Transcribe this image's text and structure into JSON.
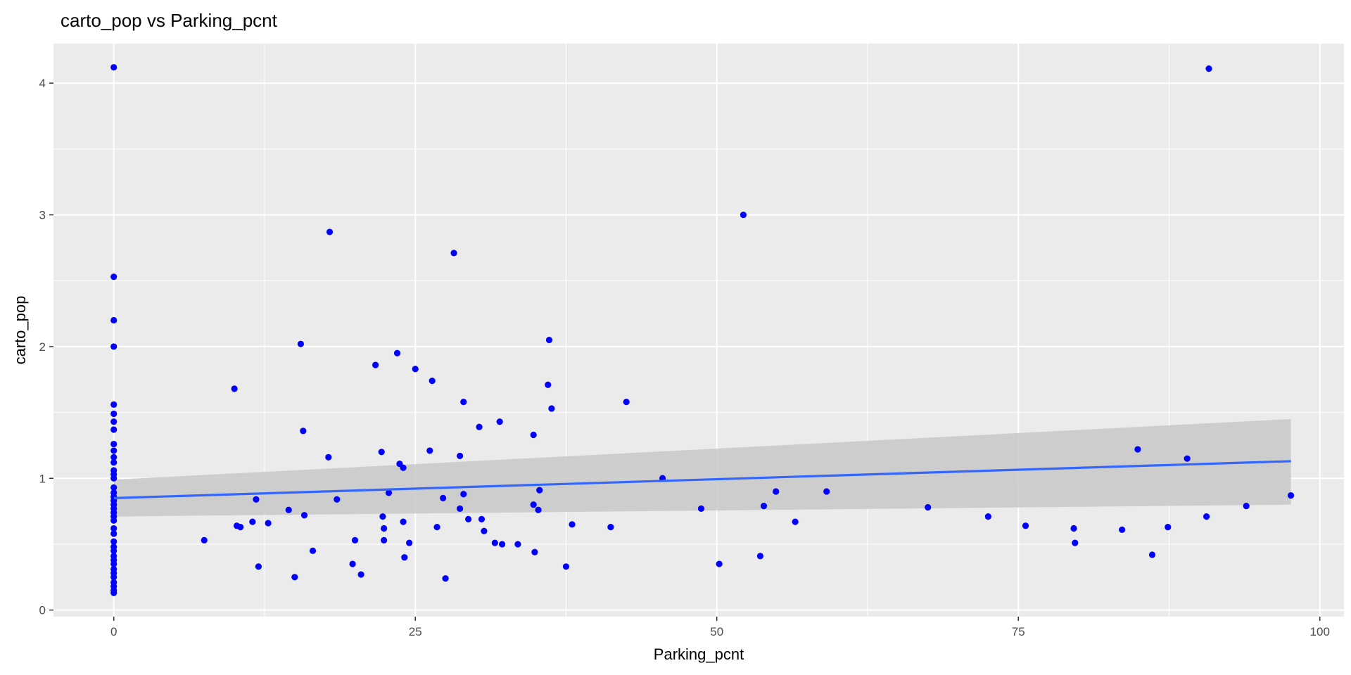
{
  "chart_data": {
    "type": "scatter",
    "title": "carto_pop vs Parking_pcnt",
    "xlabel": "Parking_pcnt",
    "ylabel": "carto_pop",
    "xlim": [
      -5,
      102
    ],
    "ylim": [
      -0.05,
      4.3
    ],
    "x_ticks": [
      0,
      25,
      50,
      75,
      100
    ],
    "x_tick_labels": [
      "0",
      "25",
      "50",
      "75",
      "100"
    ],
    "y_ticks": [
      0,
      1,
      2,
      3,
      4
    ],
    "y_tick_labels": [
      "0",
      "1",
      "2",
      "3",
      "4"
    ],
    "grid": true,
    "legend": "none",
    "colors": {
      "panel_background": "#ebebeb",
      "grid": "#ffffff",
      "points": "#0000ff",
      "trend_line": "#3366ff",
      "confidence_band": "#c8c8c8"
    },
    "series": [
      {
        "points": [
          [
            0,
            4.12
          ],
          [
            0,
            2.53
          ],
          [
            0,
            2.2
          ],
          [
            0,
            2.0
          ],
          [
            0,
            1.56
          ],
          [
            0,
            1.49
          ],
          [
            0,
            1.43
          ],
          [
            0,
            1.37
          ],
          [
            0,
            1.26
          ],
          [
            0,
            1.21
          ],
          [
            0,
            1.16
          ],
          [
            0,
            1.12
          ],
          [
            0,
            1.06
          ],
          [
            0,
            1.03
          ],
          [
            0,
            1.0
          ],
          [
            0,
            0.93
          ],
          [
            0,
            0.89
          ],
          [
            0,
            0.86
          ],
          [
            0,
            0.83
          ],
          [
            0,
            0.8
          ],
          [
            0,
            0.77
          ],
          [
            0,
            0.74
          ],
          [
            0,
            0.71
          ],
          [
            0,
            0.68
          ],
          [
            0,
            0.62
          ],
          [
            0,
            0.58
          ],
          [
            0,
            0.52
          ],
          [
            0,
            0.48
          ],
          [
            0,
            0.45
          ],
          [
            0,
            0.41
          ],
          [
            0,
            0.38
          ],
          [
            0,
            0.35
          ],
          [
            0,
            0.31
          ],
          [
            0,
            0.28
          ],
          [
            0,
            0.25
          ],
          [
            0,
            0.21
          ],
          [
            0,
            0.18
          ],
          [
            0,
            0.15
          ],
          [
            0,
            0.13
          ],
          [
            7.5,
            0.53
          ],
          [
            10.0,
            1.68
          ],
          [
            10.2,
            0.64
          ],
          [
            10.5,
            0.63
          ],
          [
            11.5,
            0.67
          ],
          [
            11.8,
            0.84
          ],
          [
            12.0,
            0.33
          ],
          [
            12.8,
            0.66
          ],
          [
            14.5,
            0.76
          ],
          [
            15.0,
            0.25
          ],
          [
            15.5,
            2.02
          ],
          [
            15.7,
            1.36
          ],
          [
            15.8,
            0.72
          ],
          [
            16.5,
            0.45
          ],
          [
            17.8,
            1.16
          ],
          [
            17.9,
            2.87
          ],
          [
            18.5,
            0.84
          ],
          [
            19.8,
            0.35
          ],
          [
            20.0,
            0.53
          ],
          [
            20.5,
            0.27
          ],
          [
            21.7,
            1.86
          ],
          [
            22.2,
            1.2
          ],
          [
            22.3,
            0.71
          ],
          [
            22.4,
            0.62
          ],
          [
            22.4,
            0.53
          ],
          [
            22.8,
            0.89
          ],
          [
            23.5,
            1.95
          ],
          [
            23.7,
            1.11
          ],
          [
            24.0,
            1.08
          ],
          [
            24.0,
            0.67
          ],
          [
            24.1,
            0.4
          ],
          [
            24.5,
            0.51
          ],
          [
            25.0,
            1.83
          ],
          [
            26.2,
            1.21
          ],
          [
            26.4,
            1.74
          ],
          [
            26.8,
            0.63
          ],
          [
            27.3,
            0.85
          ],
          [
            27.5,
            0.24
          ],
          [
            28.2,
            2.71
          ],
          [
            28.7,
            1.17
          ],
          [
            28.7,
            0.77
          ],
          [
            29.0,
            1.58
          ],
          [
            29.0,
            0.88
          ],
          [
            29.4,
            0.69
          ],
          [
            30.3,
            1.39
          ],
          [
            30.5,
            0.69
          ],
          [
            30.7,
            0.6
          ],
          [
            31.6,
            0.51
          ],
          [
            32.0,
            1.43
          ],
          [
            32.2,
            0.5
          ],
          [
            33.5,
            0.5
          ],
          [
            34.8,
            1.33
          ],
          [
            34.8,
            0.8
          ],
          [
            34.9,
            0.44
          ],
          [
            35.2,
            0.76
          ],
          [
            35.3,
            0.91
          ],
          [
            36.0,
            1.71
          ],
          [
            36.1,
            2.05
          ],
          [
            36.3,
            1.53
          ],
          [
            37.5,
            0.33
          ],
          [
            38.0,
            0.65
          ],
          [
            41.2,
            0.63
          ],
          [
            42.5,
            1.58
          ],
          [
            45.5,
            1.0
          ],
          [
            48.7,
            0.77
          ],
          [
            50.2,
            0.35
          ],
          [
            52.2,
            3.0
          ],
          [
            53.6,
            0.41
          ],
          [
            53.9,
            0.79
          ],
          [
            54.9,
            0.9
          ],
          [
            56.5,
            0.67
          ],
          [
            59.1,
            0.9
          ],
          [
            67.5,
            0.78
          ],
          [
            72.5,
            0.71
          ],
          [
            75.6,
            0.64
          ],
          [
            79.6,
            0.62
          ],
          [
            79.7,
            0.51
          ],
          [
            83.6,
            0.61
          ],
          [
            84.9,
            1.22
          ],
          [
            86.1,
            0.42
          ],
          [
            87.4,
            0.63
          ],
          [
            89.0,
            1.15
          ],
          [
            90.6,
            0.71
          ],
          [
            90.8,
            4.11
          ],
          [
            93.9,
            0.79
          ],
          [
            97.6,
            0.87
          ]
        ]
      }
    ],
    "trend_line": {
      "method": "linear",
      "x": [
        0,
        97.6
      ],
      "y": [
        0.85,
        1.13
      ],
      "ci_lower": [
        0.71,
        0.8
      ],
      "ci_upper": [
        0.99,
        1.45
      ]
    }
  }
}
